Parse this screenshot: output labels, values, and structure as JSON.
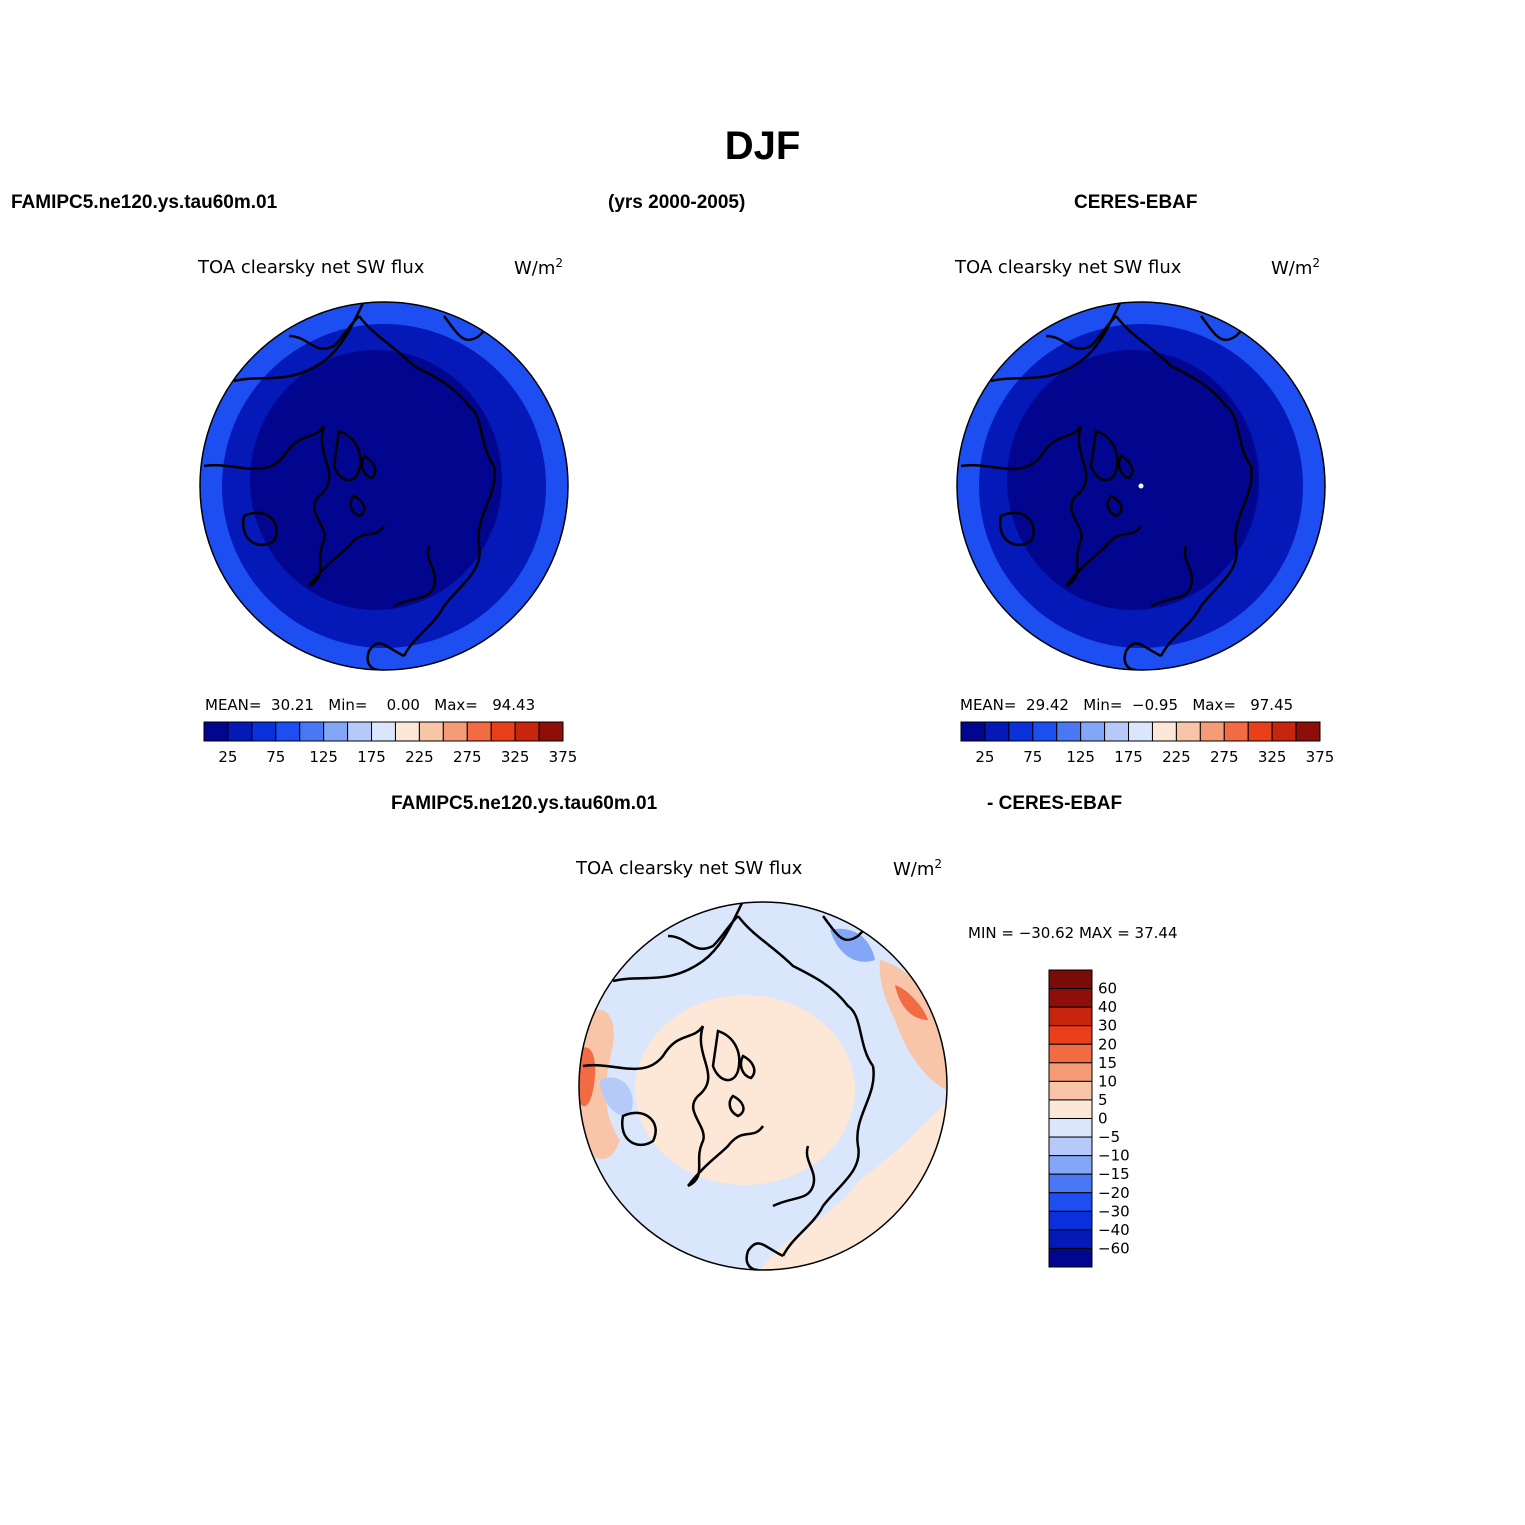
{
  "figure": {
    "season": "DJF",
    "case_name": "FAMIPC5.ne120.ys.tau60m.01",
    "years": "(yrs 2000-2005)",
    "obs_name": "CERES-EBAF",
    "diff_left": "FAMIPC5.ne120.ys.tau60m.01",
    "diff_right": "- CERES-EBAF"
  },
  "panels": [
    {
      "id": "model",
      "title": "TOA clearsky net SW flux",
      "units": "W/m",
      "units_sup": "2",
      "mean_label": "MEAN=",
      "mean": "30.21",
      "min_label": "Min=",
      "min": "0.00",
      "max_label": "Max=",
      "max": "94.43"
    },
    {
      "id": "obs",
      "title": "TOA clearsky net SW flux",
      "units": "W/m",
      "units_sup": "2",
      "mean_label": "MEAN=",
      "mean": "29.42",
      "min_label": "Min=",
      "min": "−0.95",
      "max_label": "Max=",
      "max": "97.45"
    },
    {
      "id": "diff",
      "title": "TOA clearsky net SW flux",
      "units": "W/m",
      "units_sup": "2",
      "minmax_text": "MIN = −30.62 MAX =   37.44"
    }
  ],
  "colorbar_abs": {
    "colors": [
      "#02068f",
      "#0518b8",
      "#0a30dc",
      "#1d4ef2",
      "#4a78f5",
      "#84a6f7",
      "#b5caf8",
      "#dae6fb",
      "#fde7d6",
      "#f9c5a8",
      "#f59c76",
      "#f16b43",
      "#ea3f1b",
      "#c8250f",
      "#8e0f0a"
    ],
    "tick_labels": [
      "25",
      "75",
      "125",
      "175",
      "225",
      "275",
      "325",
      "375"
    ]
  },
  "colorbar_diff": {
    "colors": [
      "#02068f",
      "#0518b8",
      "#0a30dc",
      "#1d4ef2",
      "#4a78f5",
      "#84a6f7",
      "#b5caf8",
      "#dae6fb",
      "#fde7d6",
      "#f9c5a8",
      "#f59c76",
      "#f16b43",
      "#ea3f1b",
      "#c8250f",
      "#8e0f0a",
      "#7a0c08"
    ],
    "tick_labels": [
      "60",
      "40",
      "30",
      "20",
      "15",
      "10",
      "5",
      "0",
      "−5",
      "−10",
      "−15",
      "−20",
      "−30",
      "−40",
      "−60"
    ]
  },
  "map_colors": {
    "abs_inner": "#02068f",
    "abs_mid": "#0518b8",
    "abs_outer": "#1d4ef2",
    "diff_base": "#dae6fb",
    "diff_warm": "#fde7d6",
    "diff_warm2": "#f9c5a8",
    "diff_hot": "#f16b43",
    "diff_cool": "#84a6f7"
  }
}
